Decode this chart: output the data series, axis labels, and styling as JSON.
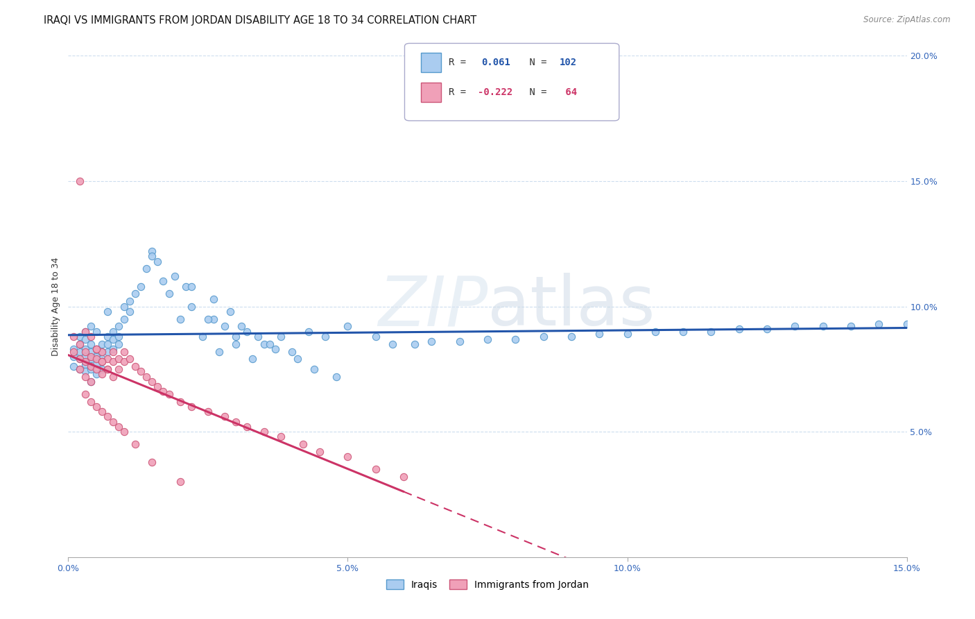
{
  "title": "IRAQI VS IMMIGRANTS FROM JORDAN DISABILITY AGE 18 TO 34 CORRELATION CHART",
  "source": "Source: ZipAtlas.com",
  "ylabel": "Disability Age 18 to 34",
  "xlim": [
    0.0,
    0.15
  ],
  "ylim": [
    0.0,
    0.2
  ],
  "xticks": [
    0.0,
    0.05,
    0.1,
    0.15
  ],
  "xtick_labels": [
    "0.0%",
    "5.0%",
    "10.0%",
    "15.0%"
  ],
  "yticks": [
    0.05,
    0.1,
    0.15,
    0.2
  ],
  "ytick_labels": [
    "5.0%",
    "10.0%",
    "15.0%",
    "20.0%"
  ],
  "iraqi_color": "#aaccf0",
  "iraqi_edge": "#5599cc",
  "jordan_color": "#f0a0b8",
  "jordan_edge": "#cc5577",
  "blue_line_color": "#2255aa",
  "pink_line_color": "#cc3366",
  "watermark": "ZIPatlas",
  "background_color": "#ffffff",
  "grid_color": "#ccddee",
  "title_fontsize": 10.5,
  "axis_fontsize": 9,
  "tick_fontsize": 9,
  "marker_size": 55,
  "iraqi_x": [
    0.001,
    0.001,
    0.001,
    0.002,
    0.002,
    0.002,
    0.002,
    0.002,
    0.003,
    0.003,
    0.003,
    0.003,
    0.003,
    0.003,
    0.004,
    0.004,
    0.004,
    0.004,
    0.004,
    0.004,
    0.005,
    0.005,
    0.005,
    0.005,
    0.005,
    0.006,
    0.006,
    0.006,
    0.006,
    0.007,
    0.007,
    0.007,
    0.007,
    0.008,
    0.008,
    0.008,
    0.009,
    0.009,
    0.009,
    0.01,
    0.01,
    0.011,
    0.011,
    0.012,
    0.013,
    0.014,
    0.015,
    0.017,
    0.018,
    0.02,
    0.021,
    0.022,
    0.024,
    0.026,
    0.028,
    0.03,
    0.032,
    0.035,
    0.038,
    0.04,
    0.043,
    0.046,
    0.05,
    0.055,
    0.058,
    0.062,
    0.065,
    0.07,
    0.075,
    0.08,
    0.085,
    0.09,
    0.095,
    0.1,
    0.105,
    0.11,
    0.115,
    0.12,
    0.125,
    0.13,
    0.135,
    0.14,
    0.145,
    0.15,
    0.025,
    0.027,
    0.03,
    0.033,
    0.036,
    0.015,
    0.016,
    0.019,
    0.022,
    0.026,
    0.029,
    0.031,
    0.034,
    0.037,
    0.041,
    0.044,
    0.048
  ],
  "iraqi_y": [
    0.08,
    0.083,
    0.076,
    0.082,
    0.079,
    0.075,
    0.085,
    0.088,
    0.08,
    0.083,
    0.077,
    0.074,
    0.09,
    0.087,
    0.082,
    0.079,
    0.085,
    0.075,
    0.092,
    0.07,
    0.083,
    0.08,
    0.077,
    0.09,
    0.073,
    0.085,
    0.082,
    0.079,
    0.075,
    0.088,
    0.085,
    0.082,
    0.098,
    0.09,
    0.087,
    0.083,
    0.092,
    0.088,
    0.085,
    0.095,
    0.1,
    0.098,
    0.102,
    0.105,
    0.108,
    0.115,
    0.122,
    0.11,
    0.105,
    0.095,
    0.108,
    0.1,
    0.088,
    0.095,
    0.092,
    0.085,
    0.09,
    0.085,
    0.088,
    0.082,
    0.09,
    0.088,
    0.092,
    0.088,
    0.085,
    0.085,
    0.086,
    0.086,
    0.087,
    0.087,
    0.088,
    0.088,
    0.089,
    0.089,
    0.09,
    0.09,
    0.09,
    0.091,
    0.091,
    0.092,
    0.092,
    0.092,
    0.093,
    0.093,
    0.095,
    0.082,
    0.088,
    0.079,
    0.085,
    0.12,
    0.118,
    0.112,
    0.108,
    0.103,
    0.098,
    0.092,
    0.088,
    0.083,
    0.079,
    0.075,
    0.072
  ],
  "jordan_x": [
    0.001,
    0.001,
    0.002,
    0.002,
    0.002,
    0.003,
    0.003,
    0.003,
    0.004,
    0.004,
    0.004,
    0.005,
    0.005,
    0.005,
    0.006,
    0.006,
    0.006,
    0.007,
    0.007,
    0.008,
    0.008,
    0.009,
    0.009,
    0.01,
    0.01,
    0.011,
    0.012,
    0.013,
    0.014,
    0.015,
    0.016,
    0.017,
    0.018,
    0.02,
    0.022,
    0.025,
    0.028,
    0.03,
    0.032,
    0.035,
    0.038,
    0.042,
    0.045,
    0.05,
    0.055,
    0.06,
    0.002,
    0.003,
    0.004,
    0.005,
    0.006,
    0.007,
    0.008,
    0.003,
    0.004,
    0.005,
    0.006,
    0.007,
    0.008,
    0.009,
    0.01,
    0.012,
    0.015,
    0.02
  ],
  "jordan_y": [
    0.088,
    0.082,
    0.085,
    0.079,
    0.075,
    0.082,
    0.078,
    0.072,
    0.08,
    0.076,
    0.07,
    0.083,
    0.079,
    0.075,
    0.082,
    0.078,
    0.073,
    0.079,
    0.075,
    0.082,
    0.078,
    0.079,
    0.075,
    0.082,
    0.078,
    0.079,
    0.076,
    0.074,
    0.072,
    0.07,
    0.068,
    0.066,
    0.065,
    0.062,
    0.06,
    0.058,
    0.056,
    0.054,
    0.052,
    0.05,
    0.048,
    0.045,
    0.042,
    0.04,
    0.035,
    0.032,
    0.15,
    0.09,
    0.088,
    0.083,
    0.078,
    0.075,
    0.072,
    0.065,
    0.062,
    0.06,
    0.058,
    0.056,
    0.054,
    0.052,
    0.05,
    0.045,
    0.038,
    0.03
  ]
}
